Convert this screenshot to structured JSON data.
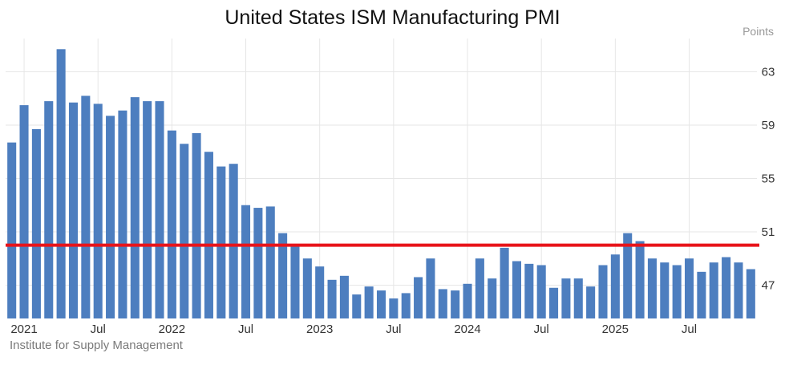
{
  "title": "United States ISM Manufacturing PMI",
  "unit_label": "Points",
  "source": "Institute for Supply Management",
  "colors": {
    "bar": "#4d7ebf",
    "reference_line": "#e8141a",
    "grid": "#e6e6e6"
  },
  "chart_data": {
    "type": "bar",
    "title": "United States ISM Manufacturing PMI",
    "ylabel": "Points",
    "ylim": [
      44.5,
      65.5
    ],
    "yticks": [
      47,
      51,
      55,
      59,
      63
    ],
    "x_tick_labels": [
      {
        "index": 1,
        "label": "2021"
      },
      {
        "index": 7,
        "label": "Jul"
      },
      {
        "index": 13,
        "label": "2022"
      },
      {
        "index": 19,
        "label": "Jul"
      },
      {
        "index": 25,
        "label": "2023"
      },
      {
        "index": 31,
        "label": "Jul"
      },
      {
        "index": 37,
        "label": "2024"
      },
      {
        "index": 43,
        "label": "Jul"
      },
      {
        "index": 49,
        "label": "2025"
      },
      {
        "index": 55,
        "label": "Jul"
      }
    ],
    "reference_line": 50,
    "values": [
      57.7,
      60.5,
      58.7,
      60.8,
      64.7,
      60.7,
      61.2,
      60.6,
      59.7,
      60.1,
      61.1,
      60.8,
      60.8,
      58.6,
      57.6,
      58.4,
      57.0,
      55.9,
      56.1,
      53.0,
      52.8,
      52.9,
      50.9,
      50.0,
      49.0,
      48.4,
      47.4,
      47.7,
      46.3,
      46.9,
      46.6,
      46.0,
      46.4,
      47.6,
      49.0,
      46.7,
      46.6,
      47.1,
      49.0,
      47.5,
      49.8,
      48.8,
      48.6,
      48.5,
      46.8,
      47.5,
      47.5,
      46.9,
      48.5,
      49.3,
      50.9,
      50.3,
      49.0,
      48.7,
      48.5,
      49.0,
      48.0,
      48.7,
      49.1,
      48.7,
      48.2
    ]
  }
}
